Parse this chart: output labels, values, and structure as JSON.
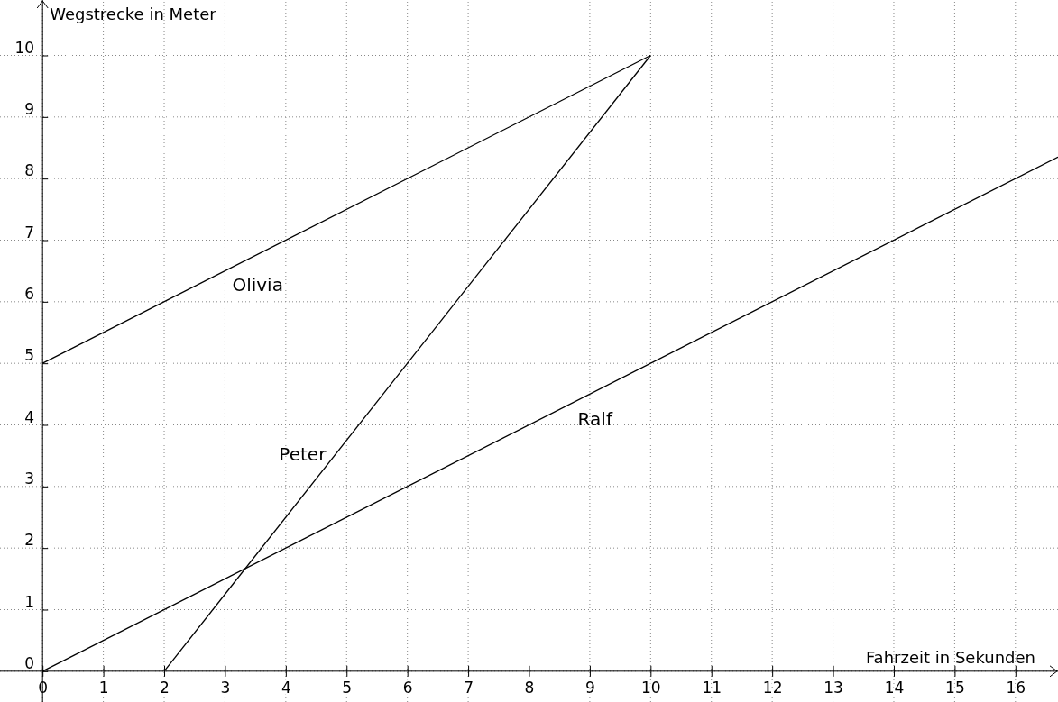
{
  "chart_data": {
    "type": "line",
    "xlabel": "Fahrzeit in Sekunden",
    "ylabel": "Wegstrecke in Meter",
    "xlim": [
      -0.7,
      16.7
    ],
    "ylim": [
      -0.5,
      10.9
    ],
    "xticks": [
      0,
      1,
      2,
      3,
      4,
      5,
      6,
      7,
      8,
      9,
      10,
      11,
      12,
      13,
      14,
      15,
      16
    ],
    "yticks": [
      0,
      1,
      2,
      3,
      4,
      5,
      6,
      7,
      8,
      9,
      10
    ],
    "grid": true,
    "marker": "none",
    "line_style": "solid",
    "series": [
      {
        "name": "Olivia",
        "color": "#000000",
        "x": [
          0,
          10
        ],
        "values": [
          5,
          10
        ]
      },
      {
        "name": "Peter",
        "color": "#000000",
        "x": [
          2,
          10
        ],
        "values": [
          0,
          10
        ]
      },
      {
        "name": "Ralf",
        "color": "#000000",
        "x": [
          0,
          16.7
        ],
        "values": [
          0,
          8.35
        ]
      }
    ]
  }
}
